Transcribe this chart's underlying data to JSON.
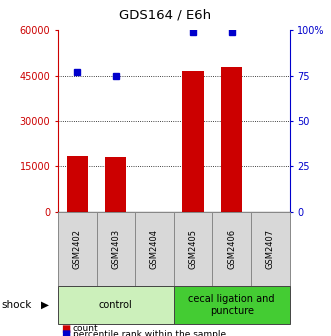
{
  "title": "GDS164 / E6h",
  "samples": [
    "GSM2402",
    "GSM2403",
    "GSM2404",
    "GSM2405",
    "GSM2406",
    "GSM2407"
  ],
  "counts": [
    18500,
    18000,
    0,
    46500,
    48000,
    0
  ],
  "percentiles": [
    77,
    75,
    null,
    99,
    99,
    null
  ],
  "ylim_left": [
    0,
    60000
  ],
  "ylim_right": [
    0,
    100
  ],
  "yticks_left": [
    0,
    15000,
    30000,
    45000,
    60000
  ],
  "yticks_right": [
    0,
    25,
    50,
    75,
    100
  ],
  "yticklabels_left": [
    "0",
    "15000",
    "30000",
    "45000",
    "60000"
  ],
  "yticklabels_right": [
    "0",
    "25",
    "50",
    "75",
    "100%"
  ],
  "groups": [
    {
      "label": "control",
      "start": 0,
      "end": 2,
      "color": "#ccf0bb"
    },
    {
      "label": "cecal ligation and\npuncture",
      "start": 3,
      "end": 5,
      "color": "#44cc33"
    }
  ],
  "shock_label": "shock",
  "bar_color": "#cc0000",
  "dot_color": "#0000cc",
  "bar_width": 0.55,
  "xlbl_color": "#d8d8d8",
  "xlbl_border": "#888888"
}
